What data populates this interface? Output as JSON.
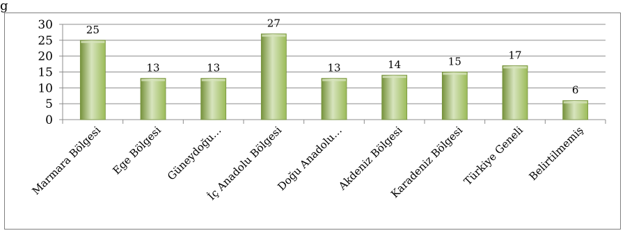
{
  "chart_data": {
    "type": "bar",
    "title": "",
    "xlabel": "",
    "ylabel": "",
    "categories": [
      "Marmara Bölgesi",
      "Ege Bölgesi",
      "Güneydoğu…",
      "İç Anadolu Bölgesi",
      "Doğu Anadolu…",
      "Akdeniz Bölgesi",
      "Karadeniz Bölgesi",
      "Türkiye Geneli",
      "Belirtilmemiş"
    ],
    "values": [
      25,
      13,
      13,
      27,
      13,
      14,
      15,
      17,
      6
    ],
    "ylim": [
      0,
      30
    ],
    "yticks": [
      0,
      5,
      10,
      15,
      20,
      25,
      30
    ],
    "grid": true,
    "legend": "none",
    "bar_color": "#9bbb59",
    "bar_color_light": "#d7e4bd",
    "bar_color_dark": "#76923c",
    "grid_color": "#8c8c8c"
  },
  "corner_glyph": "g"
}
